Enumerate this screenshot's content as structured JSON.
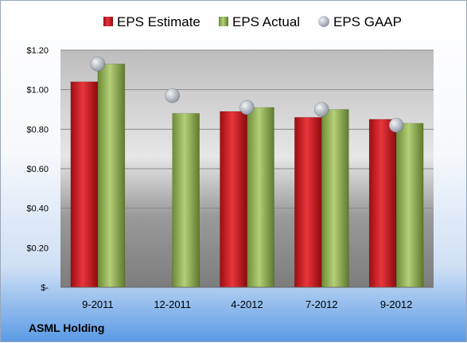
{
  "company": "ASML Holding",
  "chart_data": {
    "type": "bar",
    "categories": [
      "9-2011",
      "12-2011",
      "4-2012",
      "7-2012",
      "9-2012"
    ],
    "series": [
      {
        "name": "EPS Estimate",
        "kind": "bar",
        "color": "#c0141b",
        "values": [
          1.04,
          null,
          0.89,
          0.86,
          0.85
        ]
      },
      {
        "name": "EPS Actual",
        "kind": "bar",
        "color": "#8aac4a",
        "values": [
          1.13,
          0.88,
          0.91,
          0.9,
          0.83
        ]
      },
      {
        "name": "EPS GAAP",
        "kind": "marker",
        "color": "#aab0b8",
        "values": [
          1.13,
          0.97,
          0.91,
          0.9,
          0.82
        ]
      }
    ],
    "y_ticks": [
      "$-",
      "$0.20",
      "$0.40",
      "$0.60",
      "$0.80",
      "$1.00",
      "$1.20"
    ],
    "ylim": [
      0,
      1.2
    ],
    "grid": true,
    "legend_position": "top"
  }
}
